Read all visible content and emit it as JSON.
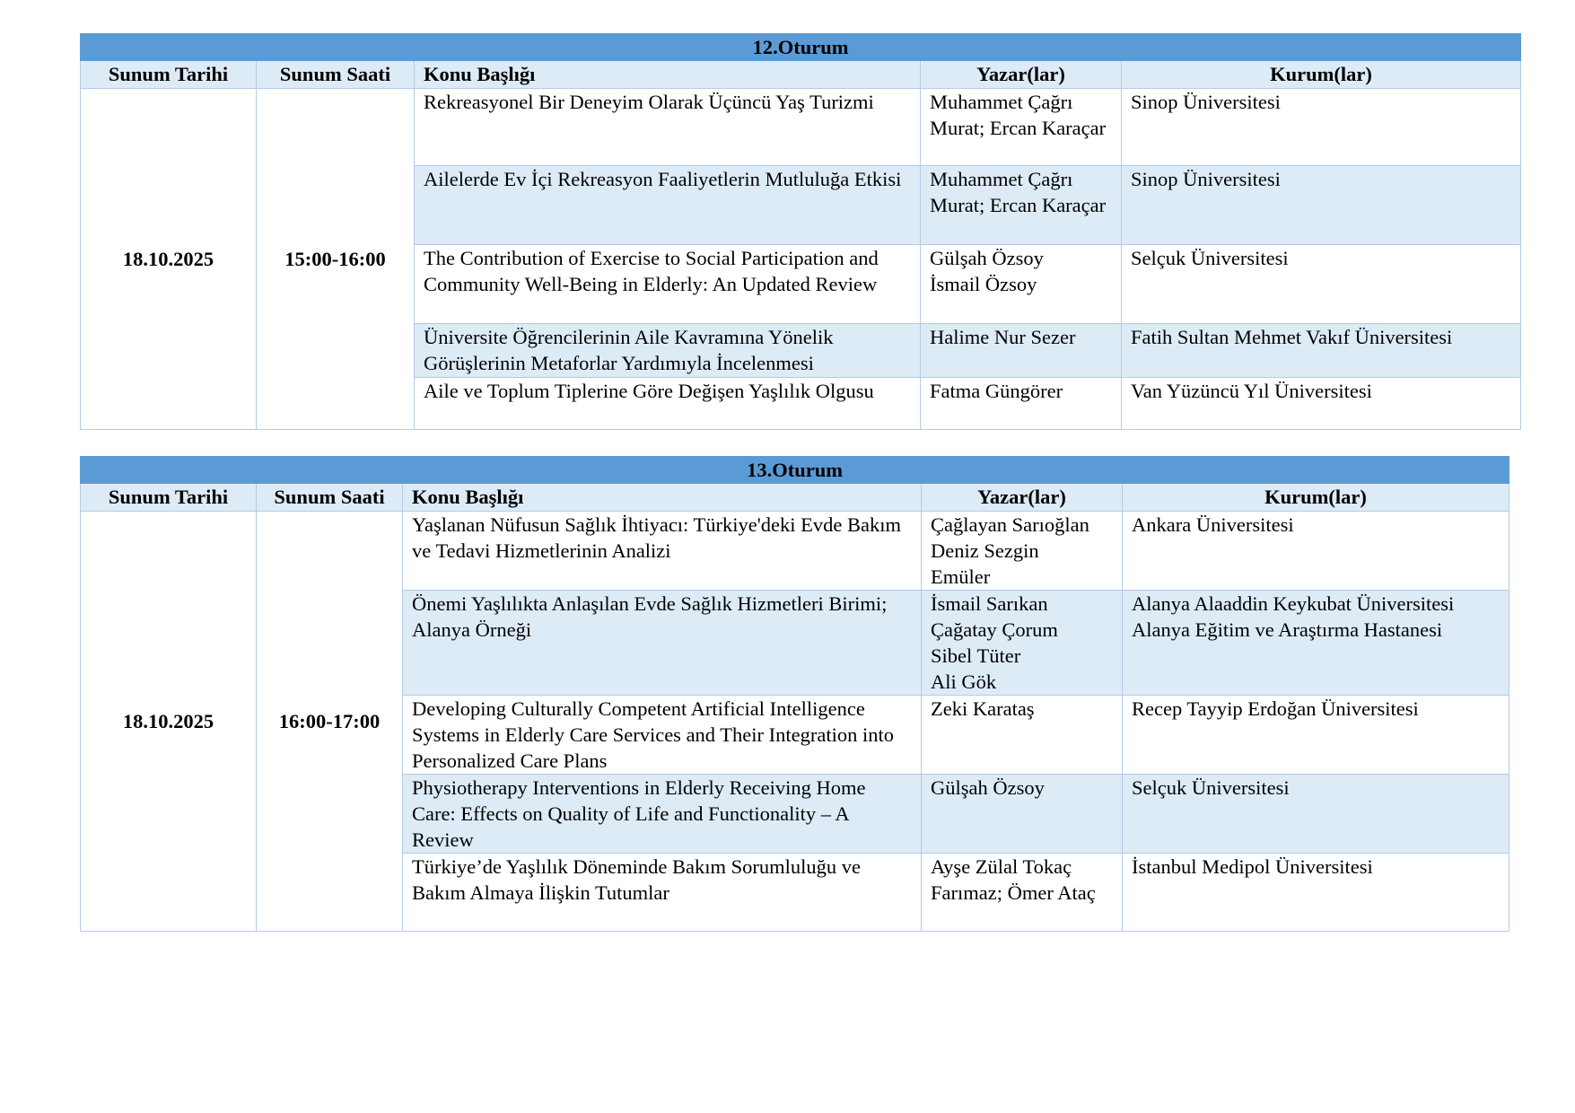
{
  "sessions": [
    {
      "title": "12.Oturum",
      "headers": [
        "Sunum Tarihi",
        "Sunum Saati",
        "Konu Başlığı",
        "Yazar(lar)",
        "Kurum(lar)"
      ],
      "date": "18.10.2025",
      "time": "15:00-16:00",
      "rows": [
        {
          "topic": "Rekreasyonel Bir Deneyim Olarak Üçüncü Yaş Turizmi",
          "authors": "Muhammet Çağrı Murat; Ercan Karaçar",
          "institution": "Sinop Üniversitesi"
        },
        {
          "topic": "Ailelerde Ev İçi Rekreasyon Faaliyetlerin Mutluluğa Etkisi",
          "authors": "Muhammet Çağrı Murat; Ercan Karaçar",
          "institution": "Sinop Üniversitesi"
        },
        {
          "topic": "The Contribution of Exercise to Social Participation and Community Well-Being in Elderly: An Updated Review",
          "authors": "Gülşah Özsoy\nİsmail Özsoy",
          "institution": "Selçuk Üniversitesi"
        },
        {
          "topic": "Üniversite Öğrencilerinin Aile Kavramına Yönelik Görüşlerinin Metaforlar Yardımıyla İncelenmesi",
          "authors": "Halime Nur Sezer",
          "institution": "Fatih Sultan Mehmet Vakıf Üniversitesi"
        },
        {
          "topic": "Aile ve Toplum Tiplerine Göre Değişen Yaşlılık Olgusu",
          "authors": "Fatma Güngörer",
          "institution": "Van Yüzüncü Yıl Üniversitesi"
        }
      ]
    },
    {
      "title": "13.Oturum",
      "headers": [
        "Sunum Tarihi",
        "Sunum Saati",
        "Konu Başlığı",
        "Yazar(lar)",
        "Kurum(lar)"
      ],
      "date": "18.10.2025",
      "time": "16:00-17:00",
      "rows": [
        {
          "topic": "Yaşlanan Nüfusun Sağlık İhtiyacı: Türkiye'deki Evde Bakım ve Tedavi Hizmetlerinin Analizi",
          "authors": "Çağlayan Sarıoğlan\nDeniz Sezgin\nEmüler",
          "institution": "Ankara Üniversitesi"
        },
        {
          "topic": "Önemi Yaşlılıkta Anlaşılan Evde Sağlık Hizmetleri Birimi; Alanya Örneği",
          "authors": "İsmail Sarıkan\nÇağatay Çorum\nSibel Tüter\nAli Gök",
          "institution": "Alanya Alaaddin Keykubat Üniversitesi\nAlanya Eğitim ve Araştırma Hastanesi"
        },
        {
          "topic": "Developing Culturally Competent Artificial Intelligence Systems in Elderly Care Services and Their Integration into Personalized Care Plans",
          "authors": "Zeki Karataş",
          "institution": "Recep Tayyip Erdoğan Üniversitesi"
        },
        {
          "topic": "Physiotherapy Interventions in Elderly Receiving Home Care: Effects on Quality of Life and Functionality – A Review",
          "authors": "Gülşah Özsoy",
          "institution": "Selçuk Üniversitesi"
        },
        {
          "topic": "Türkiye’de Yaşlılık Döneminde Bakım Sorumluluğu ve Bakım Almaya İlişkin Tutumlar",
          "authors": "Ayşe Zülal Tokaç Farımaz; Ömer Ataç",
          "institution": "İstanbul Medipol Üniversitesi"
        }
      ]
    }
  ]
}
